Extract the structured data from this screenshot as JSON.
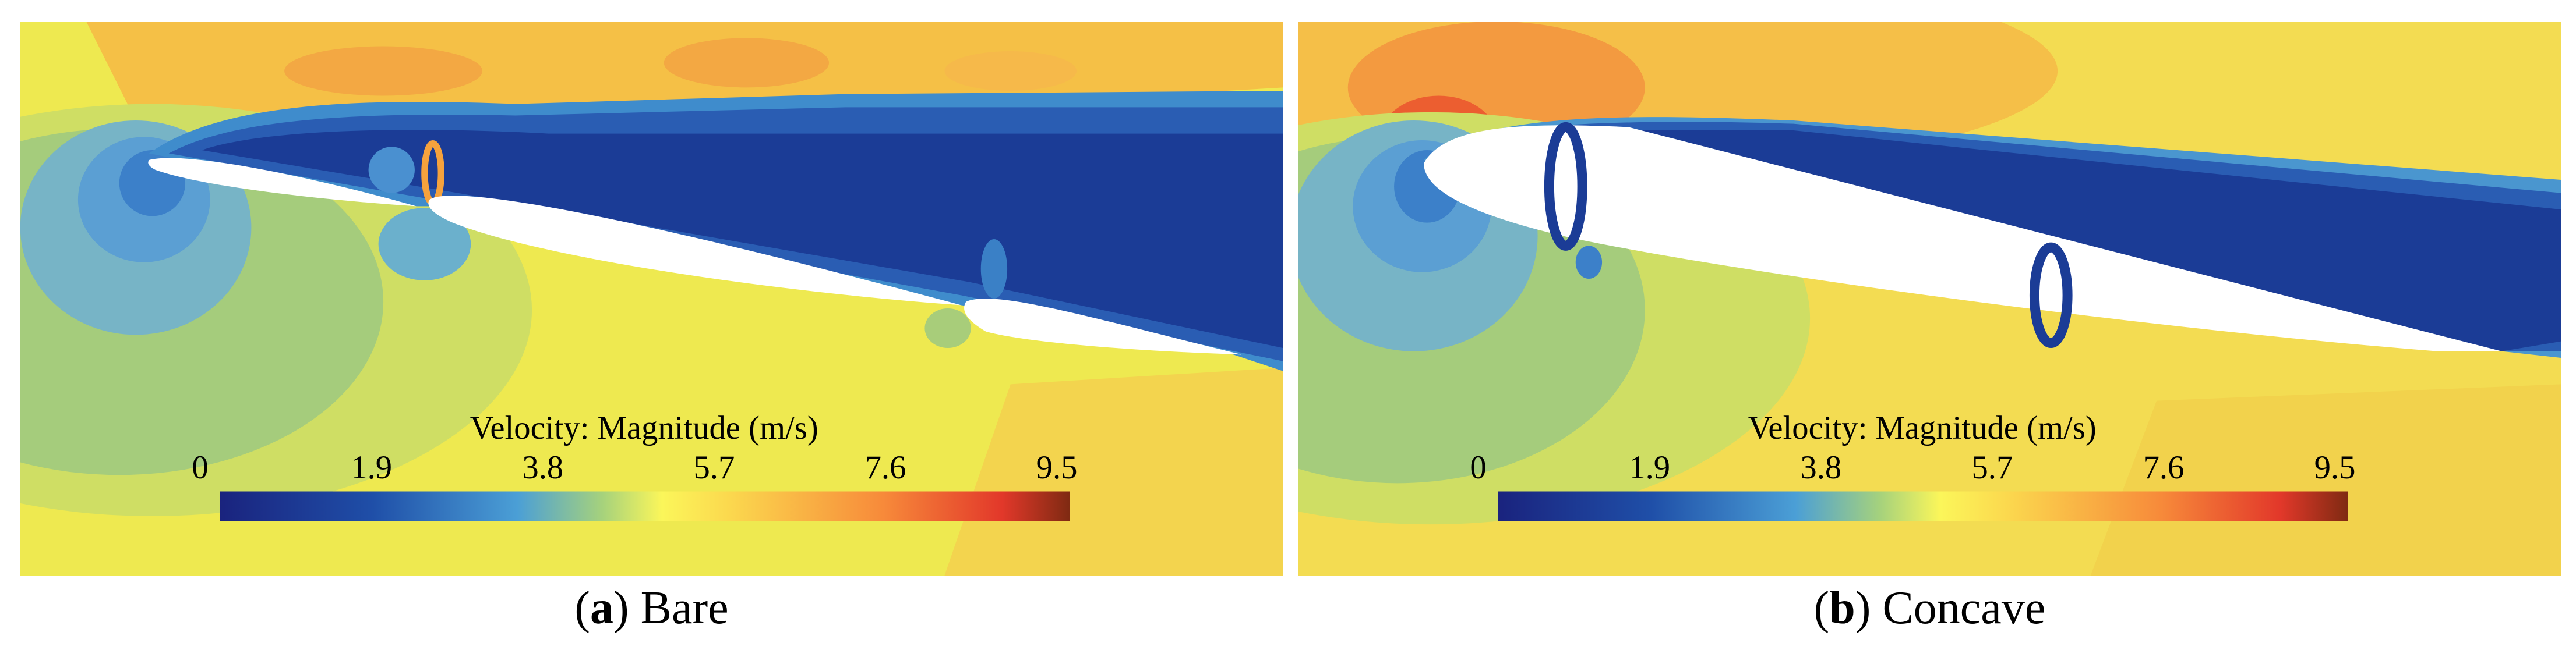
{
  "panels": [
    {
      "colorbar": {
        "title": "Velocity: Magnitude (m/s)",
        "ticks": [
          0,
          1.9,
          3.8,
          5.7,
          7.6,
          9.5
        ]
      },
      "caption": [
        "(",
        "a",
        ")",
        "Bare"
      ]
    },
    {
      "colorbar": {
        "title": "Velocity: Magnitude (m/s)",
        "ticks": [
          0,
          1.9,
          3.8,
          5.7,
          7.6,
          9.5
        ]
      },
      "caption": [
        "(",
        "b",
        ")",
        "Concave"
      ]
    }
  ]
}
